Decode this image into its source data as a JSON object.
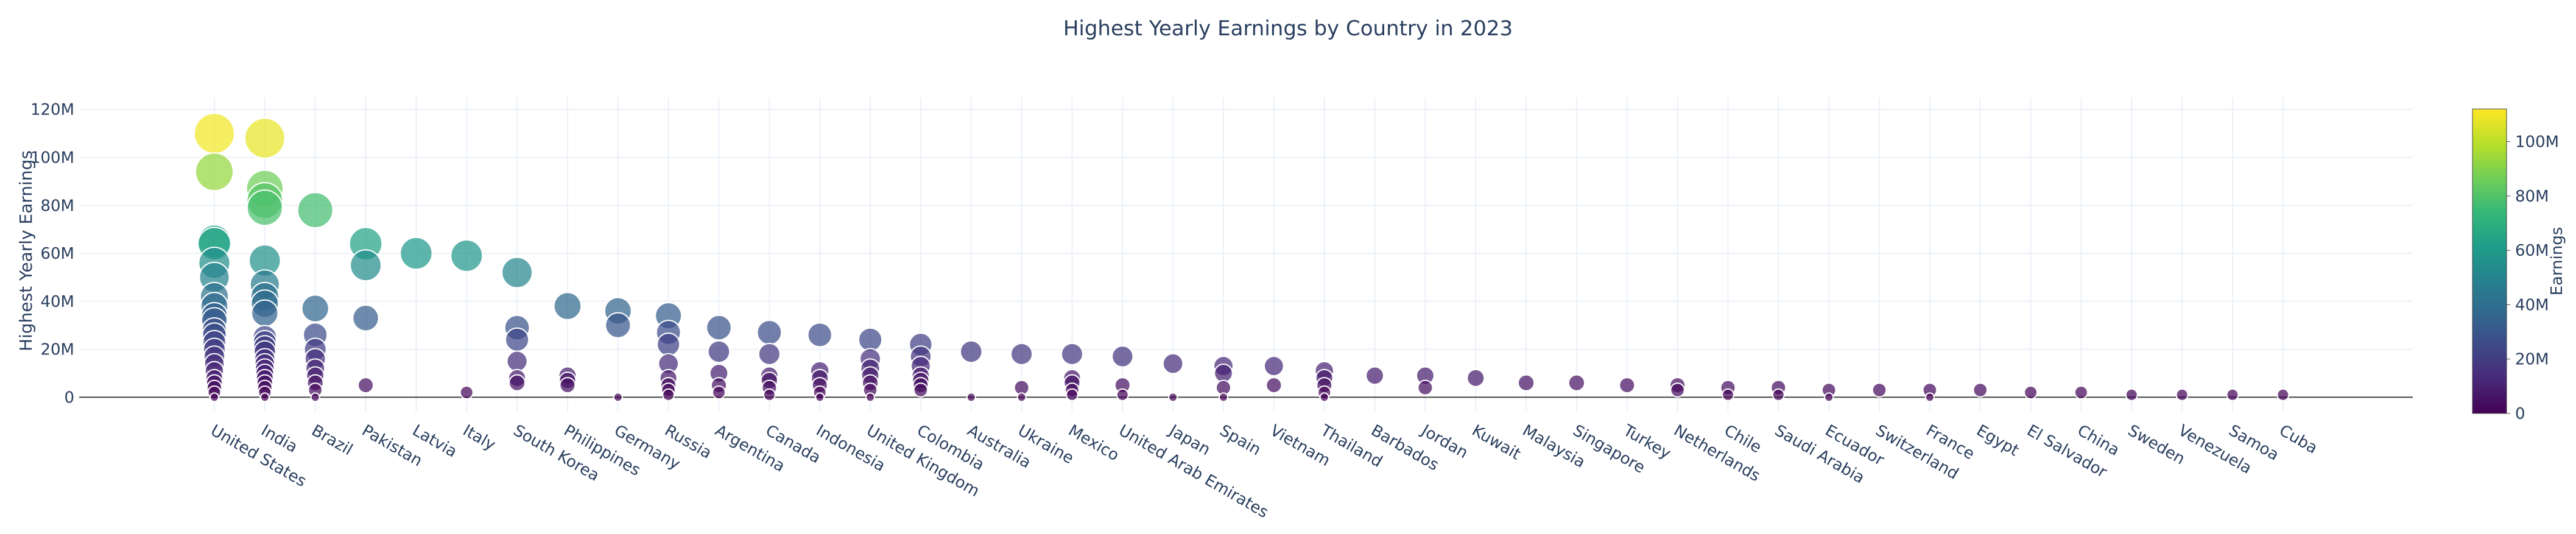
{
  "chart_data": {
    "type": "scatter",
    "subtype": "bubble",
    "title": "Highest Yearly Earnings by Country in 2023",
    "xlabel": "",
    "ylabel": "Highest Yearly Earnings",
    "ylim": [
      -6000000,
      125000000
    ],
    "y_ticks": [
      {
        "value": 0,
        "label": "0"
      },
      {
        "value": 20000000,
        "label": "20M"
      },
      {
        "value": 40000000,
        "label": "40M"
      },
      {
        "value": 60000000,
        "label": "60M"
      },
      {
        "value": 80000000,
        "label": "80M"
      },
      {
        "value": 100000000,
        "label": "100M"
      },
      {
        "value": 120000000,
        "label": "120M"
      }
    ],
    "grid": true,
    "colorscale": "Viridis",
    "colorbar": {
      "title": "Earnings",
      "range": [
        0,
        112000000
      ],
      "ticks": [
        {
          "value": 0,
          "label": "0"
        },
        {
          "value": 20000000,
          "label": "20M"
        },
        {
          "value": 40000000,
          "label": "40M"
        },
        {
          "value": 60000000,
          "label": "60M"
        },
        {
          "value": 80000000,
          "label": "80M"
        },
        {
          "value": 100000000,
          "label": "100M"
        }
      ]
    },
    "categories": [
      "United States",
      "India",
      "Brazil",
      "Pakistan",
      "Latvia",
      "Italy",
      "South Korea",
      "Philippines",
      "Germany",
      "Russia",
      "Argentina",
      "Canada",
      "Indonesia",
      "United Kingdom",
      "Colombia",
      "Australia",
      "Ukraine",
      "Mexico",
      "United Arab Emirates",
      "Japan",
      "Spain",
      "Vietnam",
      "Thailand",
      "Barbados",
      "Jordan",
      "Kuwait",
      "Malaysia",
      "Singapore",
      "Turkey",
      "Netherlands",
      "Chile",
      "Saudi Arabia",
      "Ecuador",
      "Switzerland",
      "France",
      "Egypt",
      "El Salvador",
      "China",
      "Sweden",
      "Venezuela",
      "Samoa",
      "Cuba"
    ],
    "points": [
      {
        "country": "United States",
        "earnings": 110000000
      },
      {
        "country": "United States",
        "earnings": 94000000
      },
      {
        "country": "United States",
        "earnings": 65000000
      },
      {
        "country": "United States",
        "earnings": 64000000
      },
      {
        "country": "United States",
        "earnings": 56000000
      },
      {
        "country": "United States",
        "earnings": 50000000
      },
      {
        "country": "United States",
        "earnings": 42000000
      },
      {
        "country": "United States",
        "earnings": 38000000
      },
      {
        "country": "United States",
        "earnings": 34000000
      },
      {
        "country": "United States",
        "earnings": 32000000
      },
      {
        "country": "United States",
        "earnings": 28000000
      },
      {
        "country": "United States",
        "earnings": 26000000
      },
      {
        "country": "United States",
        "earnings": 23000000
      },
      {
        "country": "United States",
        "earnings": 20000000
      },
      {
        "country": "United States",
        "earnings": 17000000
      },
      {
        "country": "United States",
        "earnings": 14000000
      },
      {
        "country": "United States",
        "earnings": 11000000
      },
      {
        "country": "United States",
        "earnings": 8000000
      },
      {
        "country": "United States",
        "earnings": 6000000
      },
      {
        "country": "United States",
        "earnings": 4000000
      },
      {
        "country": "United States",
        "earnings": 2000000
      },
      {
        "country": "United States",
        "earnings": 0
      },
      {
        "country": "India",
        "earnings": 108000000
      },
      {
        "country": "India",
        "earnings": 87000000
      },
      {
        "country": "India",
        "earnings": 82000000
      },
      {
        "country": "India",
        "earnings": 79000000
      },
      {
        "country": "India",
        "earnings": 57000000
      },
      {
        "country": "India",
        "earnings": 47000000
      },
      {
        "country": "India",
        "earnings": 42000000
      },
      {
        "country": "India",
        "earnings": 39000000
      },
      {
        "country": "India",
        "earnings": 35000000
      },
      {
        "country": "India",
        "earnings": 25000000
      },
      {
        "country": "India",
        "earnings": 23000000
      },
      {
        "country": "India",
        "earnings": 21000000
      },
      {
        "country": "India",
        "earnings": 19000000
      },
      {
        "country": "India",
        "earnings": 16000000
      },
      {
        "country": "India",
        "earnings": 14000000
      },
      {
        "country": "India",
        "earnings": 12000000
      },
      {
        "country": "India",
        "earnings": 10000000
      },
      {
        "country": "India",
        "earnings": 8000000
      },
      {
        "country": "India",
        "earnings": 6000000
      },
      {
        "country": "India",
        "earnings": 4000000
      },
      {
        "country": "India",
        "earnings": 2000000
      },
      {
        "country": "India",
        "earnings": 0
      },
      {
        "country": "Brazil",
        "earnings": 78000000
      },
      {
        "country": "Brazil",
        "earnings": 37000000
      },
      {
        "country": "Brazil",
        "earnings": 26000000
      },
      {
        "country": "Brazil",
        "earnings": 20000000
      },
      {
        "country": "Brazil",
        "earnings": 16000000
      },
      {
        "country": "Brazil",
        "earnings": 12000000
      },
      {
        "country": "Brazil",
        "earnings": 9000000
      },
      {
        "country": "Brazil",
        "earnings": 6000000
      },
      {
        "country": "Brazil",
        "earnings": 3000000
      },
      {
        "country": "Brazil",
        "earnings": 0
      },
      {
        "country": "Pakistan",
        "earnings": 64000000
      },
      {
        "country": "Pakistan",
        "earnings": 55000000
      },
      {
        "country": "Pakistan",
        "earnings": 33000000
      },
      {
        "country": "Pakistan",
        "earnings": 5000000
      },
      {
        "country": "Latvia",
        "earnings": 60000000
      },
      {
        "country": "Italy",
        "earnings": 59000000
      },
      {
        "country": "Italy",
        "earnings": 2000000
      },
      {
        "country": "South Korea",
        "earnings": 52000000
      },
      {
        "country": "South Korea",
        "earnings": 29000000
      },
      {
        "country": "South Korea",
        "earnings": 24000000
      },
      {
        "country": "South Korea",
        "earnings": 15000000
      },
      {
        "country": "South Korea",
        "earnings": 8000000
      },
      {
        "country": "South Korea",
        "earnings": 6000000
      },
      {
        "country": "Philippines",
        "earnings": 38000000
      },
      {
        "country": "Philippines",
        "earnings": 9000000
      },
      {
        "country": "Philippines",
        "earnings": 7000000
      },
      {
        "country": "Philippines",
        "earnings": 5000000
      },
      {
        "country": "Germany",
        "earnings": 36000000
      },
      {
        "country": "Germany",
        "earnings": 30000000
      },
      {
        "country": "Germany",
        "earnings": 0
      },
      {
        "country": "Russia",
        "earnings": 34000000
      },
      {
        "country": "Russia",
        "earnings": 27000000
      },
      {
        "country": "Russia",
        "earnings": 22000000
      },
      {
        "country": "Russia",
        "earnings": 14000000
      },
      {
        "country": "Russia",
        "earnings": 8000000
      },
      {
        "country": "Russia",
        "earnings": 5000000
      },
      {
        "country": "Russia",
        "earnings": 3000000
      },
      {
        "country": "Russia",
        "earnings": 1000000
      },
      {
        "country": "Argentina",
        "earnings": 29000000
      },
      {
        "country": "Argentina",
        "earnings": 19000000
      },
      {
        "country": "Argentina",
        "earnings": 10000000
      },
      {
        "country": "Argentina",
        "earnings": 5000000
      },
      {
        "country": "Argentina",
        "earnings": 2000000
      },
      {
        "country": "Canada",
        "earnings": 27000000
      },
      {
        "country": "Canada",
        "earnings": 18000000
      },
      {
        "country": "Canada",
        "earnings": 9000000
      },
      {
        "country": "Canada",
        "earnings": 7000000
      },
      {
        "country": "Canada",
        "earnings": 4000000
      },
      {
        "country": "Canada",
        "earnings": 1000000
      },
      {
        "country": "Indonesia",
        "earnings": 26000000
      },
      {
        "country": "Indonesia",
        "earnings": 11000000
      },
      {
        "country": "Indonesia",
        "earnings": 8000000
      },
      {
        "country": "Indonesia",
        "earnings": 5000000
      },
      {
        "country": "Indonesia",
        "earnings": 2000000
      },
      {
        "country": "Indonesia",
        "earnings": 0
      },
      {
        "country": "United Kingdom",
        "earnings": 24000000
      },
      {
        "country": "United Kingdom",
        "earnings": 16000000
      },
      {
        "country": "United Kingdom",
        "earnings": 12000000
      },
      {
        "country": "United Kingdom",
        "earnings": 9000000
      },
      {
        "country": "United Kingdom",
        "earnings": 6000000
      },
      {
        "country": "United Kingdom",
        "earnings": 3000000
      },
      {
        "country": "United Kingdom",
        "earnings": 0
      },
      {
        "country": "Colombia",
        "earnings": 22000000
      },
      {
        "country": "Colombia",
        "earnings": 17000000
      },
      {
        "country": "Colombia",
        "earnings": 13000000
      },
      {
        "country": "Colombia",
        "earnings": 9000000
      },
      {
        "country": "Colombia",
        "earnings": 7000000
      },
      {
        "country": "Colombia",
        "earnings": 5000000
      },
      {
        "country": "Colombia",
        "earnings": 3000000
      },
      {
        "country": "Australia",
        "earnings": 19000000
      },
      {
        "country": "Australia",
        "earnings": 0
      },
      {
        "country": "Ukraine",
        "earnings": 18000000
      },
      {
        "country": "Ukraine",
        "earnings": 4000000
      },
      {
        "country": "Ukraine",
        "earnings": 0
      },
      {
        "country": "Mexico",
        "earnings": 18000000
      },
      {
        "country": "Mexico",
        "earnings": 8000000
      },
      {
        "country": "Mexico",
        "earnings": 6000000
      },
      {
        "country": "Mexico",
        "earnings": 3000000
      },
      {
        "country": "Mexico",
        "earnings": 1000000
      },
      {
        "country": "United Arab Emirates",
        "earnings": 17000000
      },
      {
        "country": "United Arab Emirates",
        "earnings": 5000000
      },
      {
        "country": "United Arab Emirates",
        "earnings": 1000000
      },
      {
        "country": "Japan",
        "earnings": 14000000
      },
      {
        "country": "Japan",
        "earnings": 0
      },
      {
        "country": "Spain",
        "earnings": 13000000
      },
      {
        "country": "Spain",
        "earnings": 10000000
      },
      {
        "country": "Spain",
        "earnings": 4000000
      },
      {
        "country": "Spain",
        "earnings": 0
      },
      {
        "country": "Vietnam",
        "earnings": 13000000
      },
      {
        "country": "Vietnam",
        "earnings": 5000000
      },
      {
        "country": "Thailand",
        "earnings": 11000000
      },
      {
        "country": "Thailand",
        "earnings": 8000000
      },
      {
        "country": "Thailand",
        "earnings": 5000000
      },
      {
        "country": "Thailand",
        "earnings": 2000000
      },
      {
        "country": "Thailand",
        "earnings": 0
      },
      {
        "country": "Barbados",
        "earnings": 9000000
      },
      {
        "country": "Jordan",
        "earnings": 9000000
      },
      {
        "country": "Jordan",
        "earnings": 4000000
      },
      {
        "country": "Kuwait",
        "earnings": 8000000
      },
      {
        "country": "Malaysia",
        "earnings": 6000000
      },
      {
        "country": "Singapore",
        "earnings": 6000000
      },
      {
        "country": "Turkey",
        "earnings": 5000000
      },
      {
        "country": "Netherlands",
        "earnings": 5000000
      },
      {
        "country": "Netherlands",
        "earnings": 3000000
      },
      {
        "country": "Chile",
        "earnings": 4000000
      },
      {
        "country": "Chile",
        "earnings": 1000000
      },
      {
        "country": "Saudi Arabia",
        "earnings": 4000000
      },
      {
        "country": "Saudi Arabia",
        "earnings": 1000000
      },
      {
        "country": "Ecuador",
        "earnings": 3000000
      },
      {
        "country": "Ecuador",
        "earnings": 0
      },
      {
        "country": "Switzerland",
        "earnings": 3000000
      },
      {
        "country": "France",
        "earnings": 3000000
      },
      {
        "country": "France",
        "earnings": 0
      },
      {
        "country": "Egypt",
        "earnings": 3000000
      },
      {
        "country": "El Salvador",
        "earnings": 2000000
      },
      {
        "country": "China",
        "earnings": 2000000
      },
      {
        "country": "Sweden",
        "earnings": 1000000
      },
      {
        "country": "Venezuela",
        "earnings": 1000000
      },
      {
        "country": "Samoa",
        "earnings": 1000000
      },
      {
        "country": "Cuba",
        "earnings": 1000000
      }
    ]
  }
}
